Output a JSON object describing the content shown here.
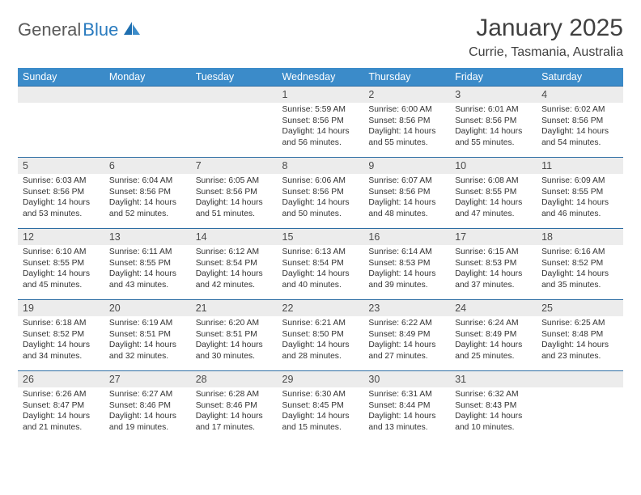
{
  "logo": {
    "part1": "General",
    "part2": "Blue"
  },
  "title": "January 2025",
  "location": "Currie, Tasmania, Australia",
  "colors": {
    "header_bg": "#3b8bc9",
    "header_text": "#ffffff",
    "daynum_bg": "#ececec",
    "row_border": "#2d6da3",
    "logo_gray": "#5a5a5a",
    "logo_blue": "#2a7bbf",
    "text": "#333333"
  },
  "weekdays": [
    "Sunday",
    "Monday",
    "Tuesday",
    "Wednesday",
    "Thursday",
    "Friday",
    "Saturday"
  ],
  "weeks": [
    [
      {
        "day": "",
        "lines": []
      },
      {
        "day": "",
        "lines": []
      },
      {
        "day": "",
        "lines": []
      },
      {
        "day": "1",
        "lines": [
          "Sunrise: 5:59 AM",
          "Sunset: 8:56 PM",
          "Daylight: 14 hours and 56 minutes."
        ]
      },
      {
        "day": "2",
        "lines": [
          "Sunrise: 6:00 AM",
          "Sunset: 8:56 PM",
          "Daylight: 14 hours and 55 minutes."
        ]
      },
      {
        "day": "3",
        "lines": [
          "Sunrise: 6:01 AM",
          "Sunset: 8:56 PM",
          "Daylight: 14 hours and 55 minutes."
        ]
      },
      {
        "day": "4",
        "lines": [
          "Sunrise: 6:02 AM",
          "Sunset: 8:56 PM",
          "Daylight: 14 hours and 54 minutes."
        ]
      }
    ],
    [
      {
        "day": "5",
        "lines": [
          "Sunrise: 6:03 AM",
          "Sunset: 8:56 PM",
          "Daylight: 14 hours and 53 minutes."
        ]
      },
      {
        "day": "6",
        "lines": [
          "Sunrise: 6:04 AM",
          "Sunset: 8:56 PM",
          "Daylight: 14 hours and 52 minutes."
        ]
      },
      {
        "day": "7",
        "lines": [
          "Sunrise: 6:05 AM",
          "Sunset: 8:56 PM",
          "Daylight: 14 hours and 51 minutes."
        ]
      },
      {
        "day": "8",
        "lines": [
          "Sunrise: 6:06 AM",
          "Sunset: 8:56 PM",
          "Daylight: 14 hours and 50 minutes."
        ]
      },
      {
        "day": "9",
        "lines": [
          "Sunrise: 6:07 AM",
          "Sunset: 8:56 PM",
          "Daylight: 14 hours and 48 minutes."
        ]
      },
      {
        "day": "10",
        "lines": [
          "Sunrise: 6:08 AM",
          "Sunset: 8:55 PM",
          "Daylight: 14 hours and 47 minutes."
        ]
      },
      {
        "day": "11",
        "lines": [
          "Sunrise: 6:09 AM",
          "Sunset: 8:55 PM",
          "Daylight: 14 hours and 46 minutes."
        ]
      }
    ],
    [
      {
        "day": "12",
        "lines": [
          "Sunrise: 6:10 AM",
          "Sunset: 8:55 PM",
          "Daylight: 14 hours and 45 minutes."
        ]
      },
      {
        "day": "13",
        "lines": [
          "Sunrise: 6:11 AM",
          "Sunset: 8:55 PM",
          "Daylight: 14 hours and 43 minutes."
        ]
      },
      {
        "day": "14",
        "lines": [
          "Sunrise: 6:12 AM",
          "Sunset: 8:54 PM",
          "Daylight: 14 hours and 42 minutes."
        ]
      },
      {
        "day": "15",
        "lines": [
          "Sunrise: 6:13 AM",
          "Sunset: 8:54 PM",
          "Daylight: 14 hours and 40 minutes."
        ]
      },
      {
        "day": "16",
        "lines": [
          "Sunrise: 6:14 AM",
          "Sunset: 8:53 PM",
          "Daylight: 14 hours and 39 minutes."
        ]
      },
      {
        "day": "17",
        "lines": [
          "Sunrise: 6:15 AM",
          "Sunset: 8:53 PM",
          "Daylight: 14 hours and 37 minutes."
        ]
      },
      {
        "day": "18",
        "lines": [
          "Sunrise: 6:16 AM",
          "Sunset: 8:52 PM",
          "Daylight: 14 hours and 35 minutes."
        ]
      }
    ],
    [
      {
        "day": "19",
        "lines": [
          "Sunrise: 6:18 AM",
          "Sunset: 8:52 PM",
          "Daylight: 14 hours and 34 minutes."
        ]
      },
      {
        "day": "20",
        "lines": [
          "Sunrise: 6:19 AM",
          "Sunset: 8:51 PM",
          "Daylight: 14 hours and 32 minutes."
        ]
      },
      {
        "day": "21",
        "lines": [
          "Sunrise: 6:20 AM",
          "Sunset: 8:51 PM",
          "Daylight: 14 hours and 30 minutes."
        ]
      },
      {
        "day": "22",
        "lines": [
          "Sunrise: 6:21 AM",
          "Sunset: 8:50 PM",
          "Daylight: 14 hours and 28 minutes."
        ]
      },
      {
        "day": "23",
        "lines": [
          "Sunrise: 6:22 AM",
          "Sunset: 8:49 PM",
          "Daylight: 14 hours and 27 minutes."
        ]
      },
      {
        "day": "24",
        "lines": [
          "Sunrise: 6:24 AM",
          "Sunset: 8:49 PM",
          "Daylight: 14 hours and 25 minutes."
        ]
      },
      {
        "day": "25",
        "lines": [
          "Sunrise: 6:25 AM",
          "Sunset: 8:48 PM",
          "Daylight: 14 hours and 23 minutes."
        ]
      }
    ],
    [
      {
        "day": "26",
        "lines": [
          "Sunrise: 6:26 AM",
          "Sunset: 8:47 PM",
          "Daylight: 14 hours and 21 minutes."
        ]
      },
      {
        "day": "27",
        "lines": [
          "Sunrise: 6:27 AM",
          "Sunset: 8:46 PM",
          "Daylight: 14 hours and 19 minutes."
        ]
      },
      {
        "day": "28",
        "lines": [
          "Sunrise: 6:28 AM",
          "Sunset: 8:46 PM",
          "Daylight: 14 hours and 17 minutes."
        ]
      },
      {
        "day": "29",
        "lines": [
          "Sunrise: 6:30 AM",
          "Sunset: 8:45 PM",
          "Daylight: 14 hours and 15 minutes."
        ]
      },
      {
        "day": "30",
        "lines": [
          "Sunrise: 6:31 AM",
          "Sunset: 8:44 PM",
          "Daylight: 14 hours and 13 minutes."
        ]
      },
      {
        "day": "31",
        "lines": [
          "Sunrise: 6:32 AM",
          "Sunset: 8:43 PM",
          "Daylight: 14 hours and 10 minutes."
        ]
      },
      {
        "day": "",
        "lines": []
      }
    ]
  ]
}
